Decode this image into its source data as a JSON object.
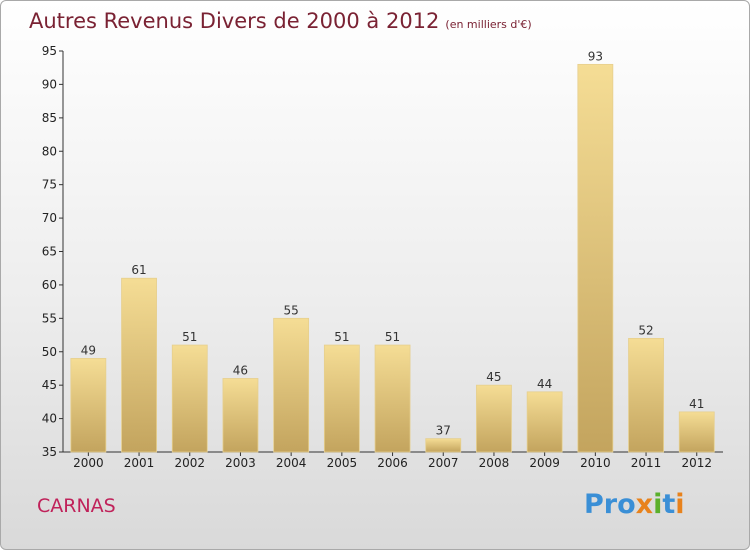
{
  "header": {
    "title": "Autres Revenus Divers de 2000 à 2012",
    "unit": "(en milliers d'€)"
  },
  "footer": {
    "place": "CARNAS",
    "logo_parts": [
      "Pro",
      "x",
      "i",
      "t",
      "i"
    ]
  },
  "colors": {
    "title": "#7a2233",
    "place": "#c0225a",
    "bar_light": "#f5dd95",
    "bar_dark": "#c3a45e",
    "logo": [
      "#3a8fd6",
      "#e8821c",
      "#5bb02c",
      "#3a8fd6",
      "#e8821c"
    ]
  },
  "chart_data": {
    "type": "bar",
    "categories": [
      "2000",
      "2001",
      "2002",
      "2003",
      "2004",
      "2005",
      "2006",
      "2007",
      "2008",
      "2009",
      "2010",
      "2011",
      "2012"
    ],
    "values": [
      49,
      61,
      51,
      46,
      55,
      51,
      51,
      37,
      45,
      44,
      93,
      52,
      41
    ],
    "title": "Autres Revenus Divers de 2000 à 2012",
    "ylim": [
      35,
      95
    ],
    "yticks": [
      35,
      40,
      45,
      50,
      55,
      60,
      65,
      70,
      75,
      80,
      85,
      90,
      95
    ],
    "grid": false,
    "legend": "none"
  }
}
